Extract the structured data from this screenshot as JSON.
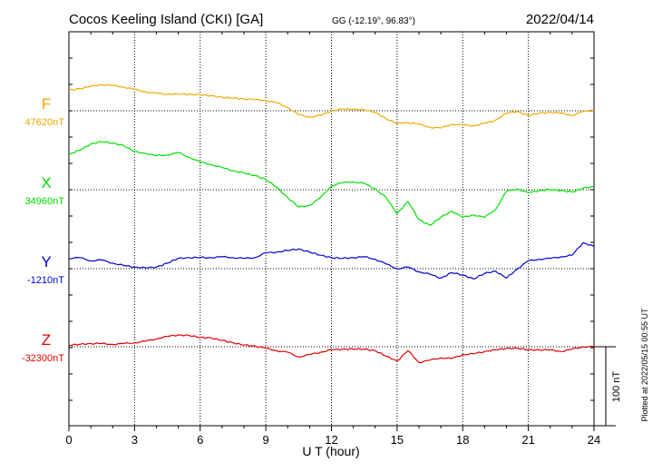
{
  "header": {
    "station": "Cocos Keeling Island (CKI)  [GA]",
    "coords": "GG (-12.19°,  96.83°)",
    "date": "2022/04/14"
  },
  "side_note": "Plotted at 2022/05/15 00:55 UT",
  "scale_label": "100 nT",
  "chart_data": {
    "type": "line",
    "xlabel": "U T (hour)",
    "xlim": [
      0,
      24
    ],
    "x_ticks": [
      "0",
      "3",
      "6",
      "9",
      "12",
      "15",
      "18",
      "21",
      "24"
    ],
    "grid": true,
    "scale_bar_nT": 100,
    "colors": {
      "F": "#f0a800",
      "X": "#00e000",
      "Y": "#0000d0",
      "Z": "#e00000"
    },
    "series": [
      {
        "name": "F",
        "baseline_label": "47620nT",
        "baseline_nT": 47620,
        "color": "#f0a800",
        "points": [
          [
            0,
            47646
          ],
          [
            0.5,
            47648
          ],
          [
            1,
            47651
          ],
          [
            1.5,
            47653
          ],
          [
            2,
            47652
          ],
          [
            2.5,
            47650
          ],
          [
            3,
            47647
          ],
          [
            3.5,
            47644
          ],
          [
            4,
            47642
          ],
          [
            4.5,
            47641
          ],
          [
            5,
            47641
          ],
          [
            5.5,
            47641
          ],
          [
            6,
            47640
          ],
          [
            6.5,
            47639
          ],
          [
            7,
            47637
          ],
          [
            7.5,
            47636
          ],
          [
            8,
            47635
          ],
          [
            8.5,
            47634
          ],
          [
            9,
            47633
          ],
          [
            9.5,
            47630
          ],
          [
            10,
            47624
          ],
          [
            10.5,
            47615
          ],
          [
            11,
            47612
          ],
          [
            11.5,
            47614
          ],
          [
            12,
            47620
          ],
          [
            12.5,
            47622
          ],
          [
            13,
            47622
          ],
          [
            13.5,
            47621
          ],
          [
            14,
            47618
          ],
          [
            14.5,
            47610
          ],
          [
            15,
            47604
          ],
          [
            15.5,
            47605
          ],
          [
            16,
            47603
          ],
          [
            16.5,
            47599
          ],
          [
            17,
            47598
          ],
          [
            17.5,
            47603
          ],
          [
            18,
            47602
          ],
          [
            18.5,
            47601
          ],
          [
            19,
            47604
          ],
          [
            19.5,
            47608
          ],
          [
            20,
            47617
          ],
          [
            20.5,
            47619
          ],
          [
            21,
            47614
          ],
          [
            21.5,
            47617
          ],
          [
            22,
            47618
          ],
          [
            22.5,
            47617
          ],
          [
            23,
            47614
          ],
          [
            23.5,
            47619
          ],
          [
            24,
            47620
          ]
        ]
      },
      {
        "name": "X",
        "baseline_label": "34960nT",
        "baseline_nT": 34960,
        "color": "#00e000",
        "points": [
          [
            0,
            35005
          ],
          [
            0.5,
            35010
          ],
          [
            1,
            35018
          ],
          [
            1.5,
            35021
          ],
          [
            2,
            35019
          ],
          [
            2.5,
            35016
          ],
          [
            3,
            35008
          ],
          [
            3.5,
            35006
          ],
          [
            4,
            35003
          ],
          [
            4.5,
            35004
          ],
          [
            5,
            35007
          ],
          [
            5.5,
            35001
          ],
          [
            6,
            34995
          ],
          [
            6.5,
            34992
          ],
          [
            7,
            34988
          ],
          [
            7.5,
            34984
          ],
          [
            8,
            34981
          ],
          [
            8.5,
            34978
          ],
          [
            9,
            34973
          ],
          [
            9.5,
            34963
          ],
          [
            10,
            34950
          ],
          [
            10.5,
            34938
          ],
          [
            11,
            34940
          ],
          [
            11.5,
            34950
          ],
          [
            12,
            34965
          ],
          [
            12.5,
            34969
          ],
          [
            13,
            34970
          ],
          [
            13.5,
            34968
          ],
          [
            14,
            34961
          ],
          [
            14.5,
            34950
          ],
          [
            15,
            34930
          ],
          [
            15.5,
            34945
          ],
          [
            16,
            34922
          ],
          [
            16.5,
            34915
          ],
          [
            17,
            34925
          ],
          [
            17.5,
            34933
          ],
          [
            18,
            34925
          ],
          [
            18.5,
            34928
          ],
          [
            19,
            34925
          ],
          [
            19.5,
            34935
          ],
          [
            20,
            34958
          ],
          [
            20.5,
            34961
          ],
          [
            21,
            34956
          ],
          [
            21.5,
            34959
          ],
          [
            22,
            34960
          ],
          [
            22.5,
            34959
          ],
          [
            23,
            34957
          ],
          [
            23.5,
            34962
          ],
          [
            24,
            34964
          ]
        ]
      },
      {
        "name": "Y",
        "baseline_label": "-1210nT",
        "baseline_nT": -1210,
        "color": "#0000d0",
        "points": [
          [
            0,
            -1197
          ],
          [
            0.5,
            -1196
          ],
          [
            1,
            -1200
          ],
          [
            1.5,
            -1199
          ],
          [
            2,
            -1203
          ],
          [
            2.5,
            -1206
          ],
          [
            3,
            -1208
          ],
          [
            3.5,
            -1209
          ],
          [
            4,
            -1208
          ],
          [
            4.5,
            -1203
          ],
          [
            5,
            -1197
          ],
          [
            5.5,
            -1196
          ],
          [
            6,
            -1196
          ],
          [
            6.5,
            -1196
          ],
          [
            7,
            -1195
          ],
          [
            7.5,
            -1196
          ],
          [
            8,
            -1197
          ],
          [
            8.5,
            -1196
          ],
          [
            9,
            -1190
          ],
          [
            9.5,
            -1189
          ],
          [
            10,
            -1187
          ],
          [
            10.5,
            -1185
          ],
          [
            11,
            -1189
          ],
          [
            11.5,
            -1193
          ],
          [
            12,
            -1196
          ],
          [
            12.5,
            -1197
          ],
          [
            13,
            -1196
          ],
          [
            13.5,
            -1195
          ],
          [
            14,
            -1198
          ],
          [
            14.5,
            -1204
          ],
          [
            15,
            -1210
          ],
          [
            15.5,
            -1208
          ],
          [
            16,
            -1214
          ],
          [
            16.5,
            -1217
          ],
          [
            17,
            -1222
          ],
          [
            17.5,
            -1215
          ],
          [
            18,
            -1218
          ],
          [
            18.5,
            -1223
          ],
          [
            19,
            -1216
          ],
          [
            19.5,
            -1213
          ],
          [
            20,
            -1222
          ],
          [
            20.5,
            -1210
          ],
          [
            21,
            -1200
          ],
          [
            21.5,
            -1198
          ],
          [
            22,
            -1197
          ],
          [
            22.5,
            -1195
          ],
          [
            23,
            -1193
          ],
          [
            23.5,
            -1177
          ],
          [
            24,
            -1182
          ]
        ]
      },
      {
        "name": "Z",
        "baseline_label": "-32300nT",
        "baseline_nT": -32300,
        "color": "#e00000",
        "points": [
          [
            0,
            -32298
          ],
          [
            0.5,
            -32297
          ],
          [
            1,
            -32296
          ],
          [
            1.5,
            -32296
          ],
          [
            2,
            -32297
          ],
          [
            2.5,
            -32296
          ],
          [
            3,
            -32295
          ],
          [
            3.5,
            -32293
          ],
          [
            4,
            -32290
          ],
          [
            4.5,
            -32287
          ],
          [
            5,
            -32285
          ],
          [
            5.5,
            -32286
          ],
          [
            6,
            -32288
          ],
          [
            6.5,
            -32289
          ],
          [
            7,
            -32292
          ],
          [
            7.5,
            -32295
          ],
          [
            8,
            -32298
          ],
          [
            8.5,
            -32299
          ],
          [
            9,
            -32302
          ],
          [
            9.5,
            -32305
          ],
          [
            10,
            -32307
          ],
          [
            10.5,
            -32313
          ],
          [
            11,
            -32310
          ],
          [
            11.5,
            -32307
          ],
          [
            12,
            -32304
          ],
          [
            12.5,
            -32303
          ],
          [
            13,
            -32303
          ],
          [
            13.5,
            -32303
          ],
          [
            14,
            -32305
          ],
          [
            14.5,
            -32312
          ],
          [
            15,
            -32318
          ],
          [
            15.5,
            -32305
          ],
          [
            16,
            -32320
          ],
          [
            16.5,
            -32317
          ],
          [
            17,
            -32314
          ],
          [
            17.5,
            -32315
          ],
          [
            18,
            -32310
          ],
          [
            18.5,
            -32309
          ],
          [
            19,
            -32306
          ],
          [
            19.5,
            -32304
          ],
          [
            20,
            -32302
          ],
          [
            20.5,
            -32302
          ],
          [
            21,
            -32304
          ],
          [
            21.5,
            -32304
          ],
          [
            22,
            -32304
          ],
          [
            22.5,
            -32306
          ],
          [
            23,
            -32303
          ],
          [
            23.5,
            -32300
          ],
          [
            24,
            -32300
          ]
        ]
      }
    ]
  }
}
